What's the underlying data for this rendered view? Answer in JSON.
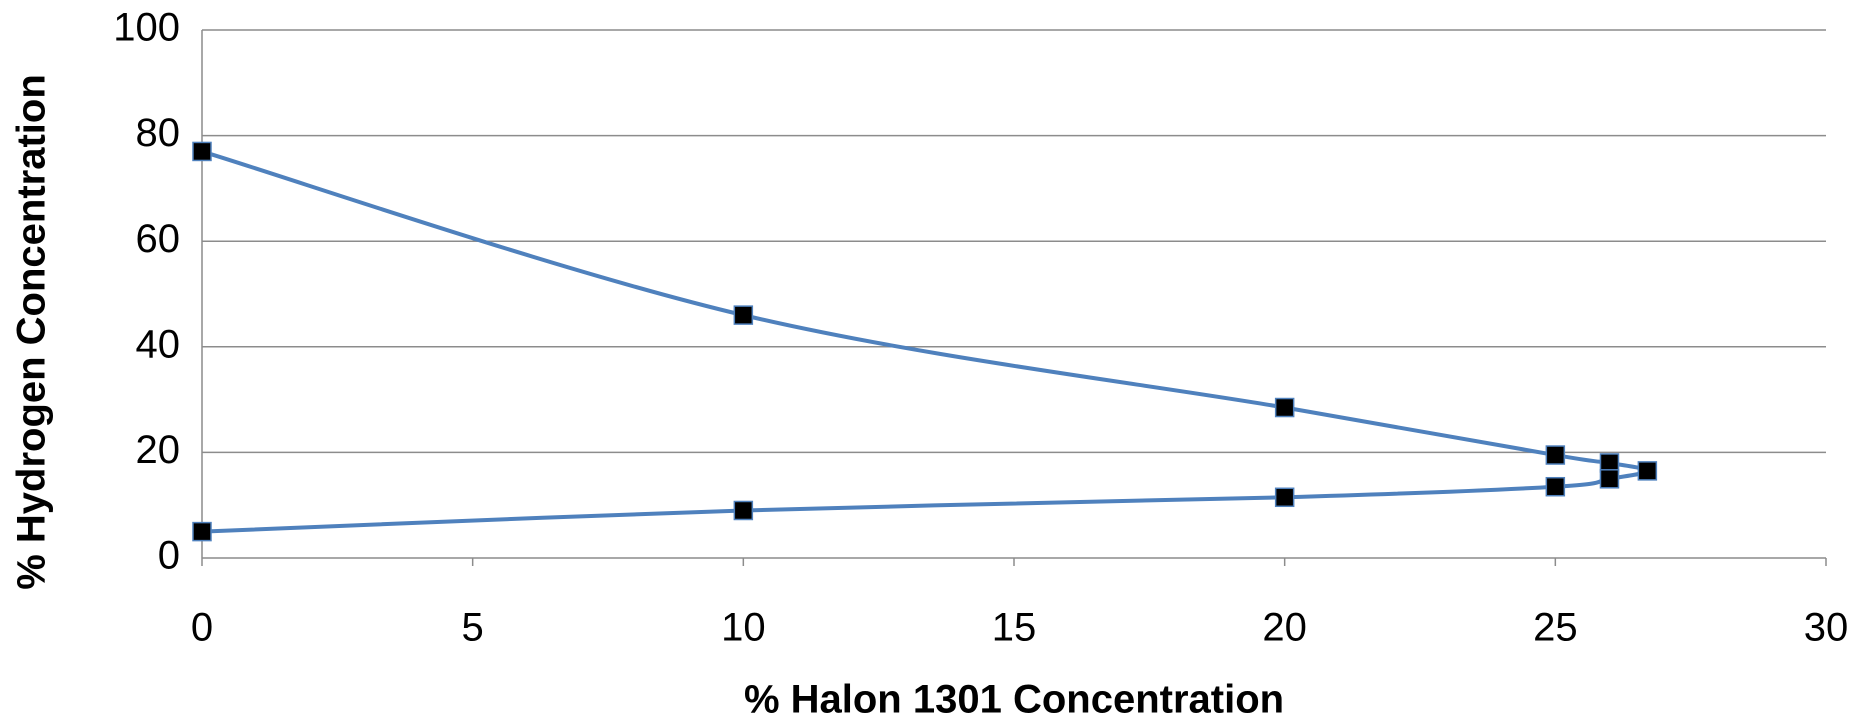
{
  "chart_data": {
    "type": "line",
    "x_label": "% Halon 1301 Concentration",
    "y_label": "% Hydrogen Concentration",
    "x": [
      0,
      10,
      20,
      25,
      26,
      26.7,
      26,
      25,
      20,
      10,
      0
    ],
    "values": [
      77,
      46,
      28.5,
      19.5,
      18,
      16.5,
      15,
      13.5,
      11.5,
      9,
      5
    ],
    "color": "#4f81bd",
    "xlim": [
      0,
      30
    ],
    "xticks": [
      0,
      5,
      10,
      15,
      20,
      25,
      30
    ],
    "ylim": [
      0,
      100
    ],
    "yticks": [
      0,
      20,
      40,
      60,
      80,
      100
    ],
    "grid": true
  }
}
